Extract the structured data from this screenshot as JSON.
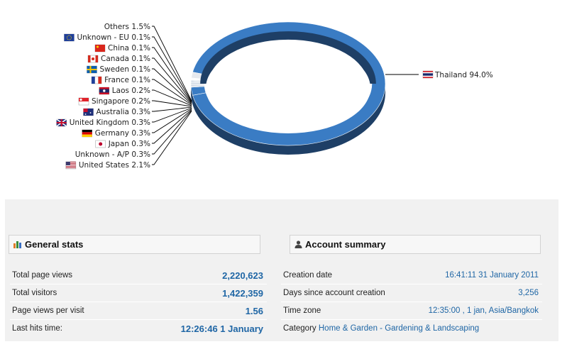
{
  "chart_data": {
    "type": "pie",
    "style": "3d-donut",
    "slices": [
      {
        "label": "Thailand",
        "value": 94.0,
        "display": "94.0%",
        "flag": "thailand-flag"
      },
      {
        "label": "Others",
        "value": 1.5,
        "display": "1.5%",
        "flag": ""
      },
      {
        "label": "Unknown - EU",
        "value": 0.1,
        "display": "0.1%",
        "flag": "eu-flag"
      },
      {
        "label": "China",
        "value": 0.1,
        "display": "0.1%",
        "flag": "china-flag"
      },
      {
        "label": "Canada",
        "value": 0.1,
        "display": "0.1%",
        "flag": "canada-flag"
      },
      {
        "label": "Sweden",
        "value": 0.1,
        "display": "0.1%",
        "flag": "sweden-flag"
      },
      {
        "label": "France",
        "value": 0.1,
        "display": "0.1%",
        "flag": "france-flag"
      },
      {
        "label": "Laos",
        "value": 0.2,
        "display": "0.2%",
        "flag": "laos-flag"
      },
      {
        "label": "Singapore",
        "value": 0.2,
        "display": "0.2%",
        "flag": "singapore-flag"
      },
      {
        "label": "Australia",
        "value": 0.3,
        "display": "0.3%",
        "flag": "australia-flag"
      },
      {
        "label": "United Kingdom",
        "value": 0.3,
        "display": "0.3%",
        "flag": "uk-flag"
      },
      {
        "label": "Germany",
        "value": 0.3,
        "display": "0.3%",
        "flag": "germany-flag"
      },
      {
        "label": "Japan",
        "value": 0.3,
        "display": "0.3%",
        "flag": "japan-flag"
      },
      {
        "label": "Unknown - A/P",
        "value": 0.3,
        "display": "0.3%",
        "flag": ""
      },
      {
        "label": "United States",
        "value": 2.1,
        "display": "2.1%",
        "flag": "us-flag"
      }
    ],
    "colors": {
      "main": "#3a7cc4",
      "dark": "#1e3f66",
      "minor": "#c8d2df",
      "others": "#e6e9ee"
    }
  },
  "general_stats": {
    "title": "General stats",
    "icon": "bar-chart-icon",
    "rows": [
      {
        "label": "Total page views",
        "value": "2,220,623"
      },
      {
        "label": "Total visitors",
        "value": "1,422,359"
      },
      {
        "label": "Page views per visit",
        "value": "1.56"
      },
      {
        "label": "Last hits time:",
        "value": "12:26:46 1 January"
      }
    ]
  },
  "account_summary": {
    "title": "Account summary",
    "icon": "user-icon",
    "rows": [
      {
        "label": "Creation date",
        "value": "16:41:11 31 January 2011"
      },
      {
        "label": "Days since account creation",
        "value": "3,256"
      },
      {
        "label": "Time zone",
        "value": "12:35:00 , 1 jan, Asia/Bangkok"
      }
    ],
    "category_label": "Category",
    "category_value": "Home & Garden - Gardening & Landscaping"
  }
}
